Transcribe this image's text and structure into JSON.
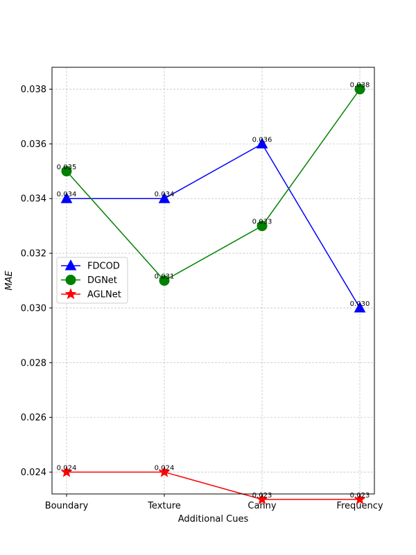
{
  "chart_data": {
    "type": "line",
    "title": "",
    "xlabel": "Additional Cues",
    "ylabel": "MAE",
    "categories": [
      "Boundary",
      "Texture",
      "Canny",
      "Frequency"
    ],
    "ylim": [
      0.0232,
      0.0388
    ],
    "yticks": [
      0.024,
      0.026,
      0.028,
      0.03,
      0.032,
      0.034,
      0.036,
      0.038
    ],
    "ytick_labels": [
      "0.024",
      "0.026",
      "0.028",
      "0.030",
      "0.032",
      "0.034",
      "0.036",
      "0.038"
    ],
    "grid": true,
    "legend_position": "center-left",
    "series": [
      {
        "name": "FDCOD",
        "color": "#0000ff",
        "marker": "triangle",
        "values": [
          0.034,
          0.034,
          0.036,
          0.03
        ],
        "labels": [
          "0.034",
          "0.034",
          "0.036",
          "0.030"
        ]
      },
      {
        "name": "DGNet",
        "color": "#008000",
        "marker": "circle",
        "values": [
          0.035,
          0.031,
          0.033,
          0.038
        ],
        "labels": [
          "0.035",
          "0.031",
          "0.033",
          "0.038"
        ]
      },
      {
        "name": "AGLNet",
        "color": "#ff0000",
        "marker": "star",
        "values": [
          0.024,
          0.024,
          0.023,
          0.023
        ],
        "labels": [
          "0.024",
          "0.024",
          "0.023",
          "0.023"
        ]
      }
    ]
  }
}
